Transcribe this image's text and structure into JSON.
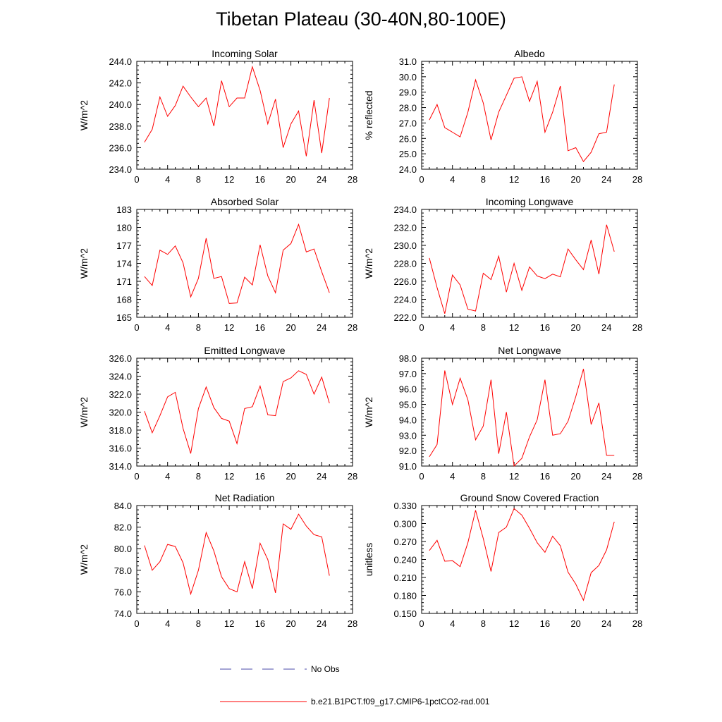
{
  "title": "Tibetan Plateau (30-40N,80-100E)",
  "colors": {
    "model": "#ff0000",
    "obs": "#4a4aa8",
    "axis": "#000000"
  },
  "legend": {
    "obs_label": "No Obs",
    "model_label": "b.e21.B1PCT.f09_g17.CMIP6-1pctCO2-rad.001"
  },
  "chart_data": [
    {
      "type": "line",
      "title": "Incoming Solar",
      "xlabel": "",
      "ylabel": "W/m^2",
      "xlim": [
        0,
        28
      ],
      "ylim": [
        234,
        244
      ],
      "xticks": [
        0,
        4,
        8,
        12,
        16,
        20,
        24,
        28
      ],
      "yticks": [
        234,
        236,
        238,
        240,
        242,
        244
      ],
      "ydecimals": 1,
      "x": [
        1,
        2,
        3,
        4,
        5,
        6,
        7,
        8,
        9,
        10,
        11,
        12,
        13,
        14,
        15,
        16,
        17,
        18,
        19,
        20,
        21,
        22,
        23,
        24,
        25
      ],
      "values": [
        236.5,
        237.7,
        240.7,
        238.9,
        239.9,
        241.7,
        240.7,
        239.8,
        240.6,
        238.0,
        242.2,
        239.8,
        240.6,
        240.6,
        243.5,
        241.3,
        238.2,
        240.5,
        236.0,
        238.2,
        239.4,
        235.2,
        240.4,
        235.5,
        240.6
      ]
    },
    {
      "type": "line",
      "title": "Albedo",
      "xlabel": "",
      "ylabel": "% reflected",
      "xlim": [
        0,
        28
      ],
      "ylim": [
        24,
        31
      ],
      "xticks": [
        0,
        4,
        8,
        12,
        16,
        20,
        24,
        28
      ],
      "yticks": [
        24,
        25,
        26,
        27,
        28,
        29,
        30,
        31
      ],
      "ydecimals": 1,
      "x": [
        1,
        2,
        3,
        4,
        5,
        6,
        7,
        8,
        9,
        10,
        11,
        12,
        13,
        14,
        15,
        16,
        17,
        18,
        19,
        20,
        21,
        22,
        23,
        24,
        25
      ],
      "values": [
        27.2,
        28.2,
        26.7,
        26.4,
        26.1,
        27.7,
        29.8,
        28.3,
        25.9,
        27.7,
        28.8,
        29.9,
        30.0,
        28.4,
        29.7,
        26.4,
        27.7,
        29.4,
        25.2,
        25.4,
        24.5,
        25.1,
        26.3,
        26.4,
        29.5
      ]
    },
    {
      "type": "line",
      "title": "Absorbed Solar",
      "xlabel": "",
      "ylabel": "W/m^2",
      "xlim": [
        0,
        28
      ],
      "ylim": [
        165,
        183
      ],
      "xticks": [
        0,
        4,
        8,
        12,
        16,
        20,
        24,
        28
      ],
      "yticks": [
        165,
        168,
        171,
        174,
        177,
        180,
        183
      ],
      "ydecimals": 0,
      "x": [
        1,
        2,
        3,
        4,
        5,
        6,
        7,
        8,
        9,
        10,
        11,
        12,
        13,
        14,
        15,
        16,
        17,
        18,
        19,
        20,
        21,
        22,
        23,
        24,
        25
      ],
      "values": [
        171.8,
        170.3,
        176.2,
        175.5,
        176.9,
        174.1,
        168.4,
        171.5,
        178.2,
        171.5,
        171.8,
        167.3,
        167.4,
        171.7,
        170.4,
        177.1,
        171.9,
        169.1,
        176.2,
        177.3,
        180.5,
        175.9,
        176.4,
        172.6,
        169.1
      ]
    },
    {
      "type": "line",
      "title": "Incoming Longwave",
      "xlabel": "",
      "ylabel": "W/m^2",
      "xlim": [
        0,
        28
      ],
      "ylim": [
        222,
        234
      ],
      "xticks": [
        0,
        4,
        8,
        12,
        16,
        20,
        24,
        28
      ],
      "yticks": [
        222,
        224,
        226,
        228,
        230,
        232,
        234
      ],
      "ydecimals": 1,
      "x": [
        1,
        2,
        3,
        4,
        5,
        6,
        7,
        8,
        9,
        10,
        11,
        12,
        13,
        14,
        15,
        16,
        17,
        18,
        19,
        20,
        21,
        22,
        23,
        24,
        25
      ],
      "values": [
        228.6,
        225.3,
        222.4,
        226.7,
        225.6,
        222.9,
        222.7,
        226.9,
        226.2,
        228.8,
        224.8,
        228.0,
        225.0,
        227.6,
        226.6,
        226.3,
        226.8,
        226.5,
        229.6,
        228.4,
        227.3,
        230.6,
        226.8,
        232.3,
        229.3
      ]
    },
    {
      "type": "line",
      "title": "Emitted Longwave",
      "xlabel": "",
      "ylabel": "W/m^2",
      "xlim": [
        0,
        28
      ],
      "ylim": [
        314,
        326
      ],
      "xticks": [
        0,
        4,
        8,
        12,
        16,
        20,
        24,
        28
      ],
      "yticks": [
        314,
        316,
        318,
        320,
        322,
        324,
        326
      ],
      "ydecimals": 1,
      "x": [
        1,
        2,
        3,
        4,
        5,
        6,
        7,
        8,
        9,
        10,
        11,
        12,
        13,
        14,
        15,
        16,
        17,
        18,
        19,
        20,
        21,
        22,
        23,
        24,
        25
      ],
      "values": [
        320.1,
        317.7,
        319.6,
        321.7,
        322.2,
        318.2,
        315.4,
        320.4,
        322.8,
        320.5,
        319.3,
        319.0,
        316.5,
        320.4,
        320.6,
        322.9,
        319.7,
        319.6,
        323.4,
        323.8,
        324.6,
        324.2,
        322.0,
        323.9,
        321.0
      ]
    },
    {
      "type": "line",
      "title": "Net Longwave",
      "xlabel": "",
      "ylabel": "W/m^2",
      "xlim": [
        0,
        28
      ],
      "ylim": [
        91,
        98
      ],
      "xticks": [
        0,
        4,
        8,
        12,
        16,
        20,
        24,
        28
      ],
      "yticks": [
        91,
        92,
        93,
        94,
        95,
        96,
        97,
        98
      ],
      "ydecimals": 1,
      "x": [
        1,
        2,
        3,
        4,
        5,
        6,
        7,
        8,
        9,
        10,
        11,
        12,
        13,
        14,
        15,
        16,
        17,
        18,
        19,
        20,
        21,
        22,
        23,
        24,
        25
      ],
      "values": [
        91.6,
        92.4,
        97.2,
        95.0,
        96.7,
        95.3,
        92.7,
        93.6,
        96.6,
        91.8,
        94.5,
        91.0,
        91.5,
        92.9,
        94.0,
        96.6,
        93.0,
        93.1,
        93.9,
        95.5,
        97.3,
        93.7,
        95.1,
        91.7,
        91.7
      ]
    },
    {
      "type": "line",
      "title": "Net Radiation",
      "xlabel": "",
      "ylabel": "W/m^2",
      "xlim": [
        0,
        28
      ],
      "ylim": [
        74,
        84
      ],
      "xticks": [
        0,
        4,
        8,
        12,
        16,
        20,
        24,
        28
      ],
      "yticks": [
        74,
        76,
        78,
        80,
        82,
        84
      ],
      "ydecimals": 1,
      "x": [
        1,
        2,
        3,
        4,
        5,
        6,
        7,
        8,
        9,
        10,
        11,
        12,
        13,
        14,
        15,
        16,
        17,
        18,
        19,
        20,
        21,
        22,
        23,
        24,
        25
      ],
      "values": [
        80.3,
        78.0,
        78.8,
        80.4,
        80.2,
        78.7,
        75.8,
        78.0,
        81.5,
        79.8,
        77.4,
        76.3,
        76.0,
        78.8,
        76.3,
        80.5,
        79.0,
        75.9,
        82.3,
        81.8,
        83.2,
        82.1,
        81.3,
        81.1,
        77.5
      ]
    },
    {
      "type": "line",
      "title": "Ground Snow Covered Fraction",
      "xlabel": "",
      "ylabel": "unitless",
      "xlim": [
        0,
        28
      ],
      "ylim": [
        0.15,
        0.33
      ],
      "xticks": [
        0,
        4,
        8,
        12,
        16,
        20,
        24,
        28
      ],
      "yticks": [
        0.15,
        0.18,
        0.21,
        0.24,
        0.27,
        0.3,
        0.33
      ],
      "ydecimals": 3,
      "x": [
        1,
        2,
        3,
        4,
        5,
        6,
        7,
        8,
        9,
        10,
        11,
        12,
        13,
        14,
        15,
        16,
        17,
        18,
        19,
        20,
        21,
        22,
        23,
        24,
        25
      ],
      "values": [
        0.255,
        0.272,
        0.237,
        0.238,
        0.228,
        0.268,
        0.322,
        0.275,
        0.22,
        0.285,
        0.294,
        0.325,
        0.314,
        0.292,
        0.268,
        0.252,
        0.279,
        0.263,
        0.219,
        0.199,
        0.172,
        0.218,
        0.23,
        0.256,
        0.303
      ]
    }
  ]
}
